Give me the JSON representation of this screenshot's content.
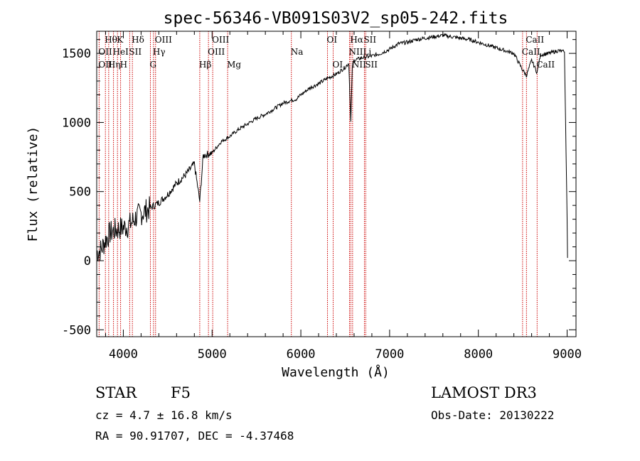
{
  "chart_data": {
    "type": "line",
    "title": "spec-56346-VB091S03V2_sp05-242.fits",
    "xlabel": "Wavelength (Å)",
    "ylabel": "Flux (relative)",
    "xlim": [
      3700,
      9100
    ],
    "ylim": [
      -550,
      1660
    ],
    "xticks": [
      4000,
      5000,
      6000,
      7000,
      8000,
      9000
    ],
    "xtick_labels": [
      "4000",
      "5000",
      "6000",
      "7000",
      "8000",
      "9000"
    ],
    "yticks": [
      -500,
      0,
      500,
      1000,
      1500
    ],
    "ytick_labels": [
      "-500",
      "0",
      "500",
      "1000",
      "1500"
    ],
    "series": [
      {
        "name": "flux",
        "x": [
          3700,
          3750,
          3800,
          3850,
          3900,
          3950,
          4000,
          4050,
          4100,
          4150,
          4200,
          4250,
          4300,
          4350,
          4400,
          4450,
          4500,
          4600,
          4700,
          4800,
          4861,
          4900,
          5000,
          5100,
          5200,
          5300,
          5400,
          5500,
          5600,
          5700,
          5800,
          5890,
          5950,
          6000,
          6100,
          6200,
          6300,
          6400,
          6500,
          6540,
          6563,
          6580,
          6600,
          6700,
          6800,
          6900,
          7000,
          7100,
          7200,
          7300,
          7400,
          7500,
          7600,
          7700,
          7800,
          7900,
          8000,
          8100,
          8200,
          8300,
          8400,
          8498,
          8542,
          8600,
          8662,
          8700,
          8800,
          8900,
          8970,
          9000,
          9005
        ],
        "y": [
          60,
          80,
          150,
          200,
          220,
          230,
          240,
          250,
          280,
          320,
          340,
          360,
          380,
          400,
          420,
          450,
          480,
          560,
          620,
          700,
          430,
          760,
          780,
          860,
          900,
          950,
          990,
          1030,
          1060,
          1100,
          1140,
          1160,
          1170,
          1200,
          1250,
          1280,
          1320,
          1350,
          1400,
          1430,
          1000,
          1410,
          1450,
          1470,
          1480,
          1500,
          1530,
          1570,
          1580,
          1600,
          1610,
          1620,
          1630,
          1620,
          1610,
          1600,
          1580,
          1560,
          1540,
          1520,
          1500,
          1380,
          1340,
          1450,
          1360,
          1490,
          1500,
          1520,
          1510,
          300,
          20
        ]
      }
    ],
    "line_markers": [
      {
        "label": "Hθ",
        "wavelength": 3798,
        "row": 1
      },
      {
        "label": "K",
        "wavelength": 3934,
        "row": 1
      },
      {
        "label": "Hδ",
        "wavelength": 4102,
        "row": 1
      },
      {
        "label": "OIII",
        "wavelength": 4363,
        "row": 1
      },
      {
        "label": "OIII",
        "wavelength": 5007,
        "row": 1
      },
      {
        "label": "OI",
        "wavelength": 6300,
        "row": 1
      },
      {
        "label": "Hα",
        "wavelength": 6563,
        "row": 1
      },
      {
        "label": "SII",
        "wavelength": 6716,
        "row": 1
      },
      {
        "label": "CaII",
        "wavelength": 8542,
        "row": 1
      },
      {
        "label": "OII",
        "wavelength": 3727,
        "row": 2
      },
      {
        "label": "HeI",
        "wavelength": 3889,
        "row": 2
      },
      {
        "label": "SII",
        "wavelength": 4072,
        "row": 2
      },
      {
        "label": "Hγ",
        "wavelength": 4340,
        "row": 2
      },
      {
        "label": "OIII",
        "wavelength": 4959,
        "row": 2
      },
      {
        "label": "Na",
        "wavelength": 5893,
        "row": 2
      },
      {
        "label": "NII",
        "wavelength": 6548,
        "row": 2
      },
      {
        "label": "Li",
        "wavelength": 6708,
        "row": 2
      },
      {
        "label": "CaII",
        "wavelength": 8498,
        "row": 2
      },
      {
        "label": "OII",
        "wavelength": 3727,
        "row": 3
      },
      {
        "label": "Hη",
        "wavelength": 3835,
        "row": 3
      },
      {
        "label": "H",
        "wavelength": 3969,
        "row": 3
      },
      {
        "label": "G",
        "wavelength": 4305,
        "row": 3
      },
      {
        "label": "Hβ",
        "wavelength": 4861,
        "row": 3
      },
      {
        "label": "Mg",
        "wavelength": 5175,
        "row": 3
      },
      {
        "label": "OI",
        "wavelength": 6364,
        "row": 3
      },
      {
        "label": "NII",
        "wavelength": 6583,
        "row": 3
      },
      {
        "label": "SII",
        "wavelength": 6731,
        "row": 3
      },
      {
        "label": "CaII",
        "wavelength": 8662,
        "row": 3
      }
    ],
    "marker_line_wavelengths": [
      3727,
      3798,
      3835,
      3889,
      3934,
      3969,
      4072,
      4102,
      4305,
      4340,
      4363,
      4861,
      4959,
      5007,
      5175,
      5893,
      6300,
      6364,
      6548,
      6563,
      6583,
      6716,
      6731,
      8498,
      8542,
      8662
    ]
  },
  "info": {
    "object_class": "STAR",
    "subclass": "F5",
    "redshift": "cz = 4.7 ± 16.8 km/s",
    "coords": "RA =  90.91707, DEC =  -4.37468",
    "survey": "LAMOST DR3",
    "obs_date": "Obs-Date: 20130222"
  },
  "colors": {
    "marker_line": "#cc0000",
    "spectrum": "#000000",
    "axes": "#000000"
  }
}
